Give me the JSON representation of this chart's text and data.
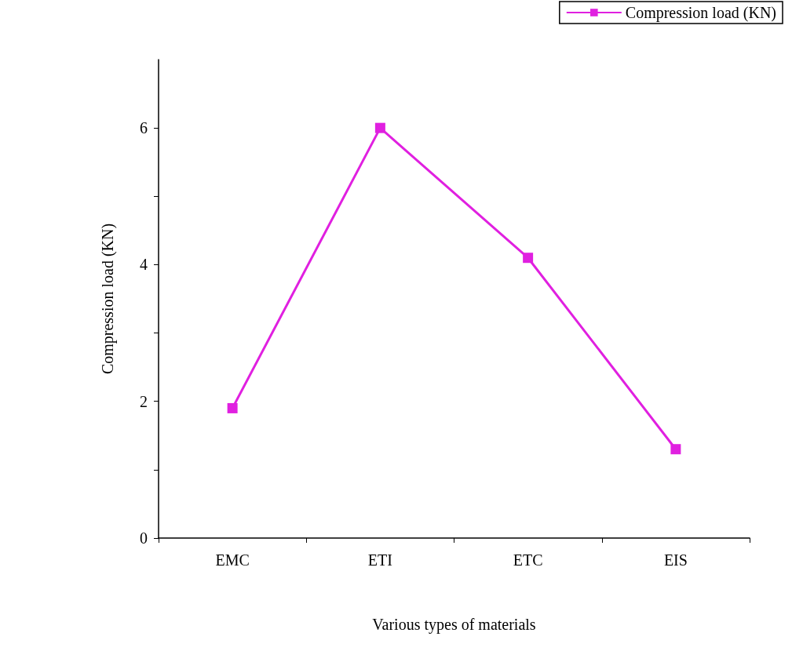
{
  "chart_data": {
    "type": "line",
    "xlabel": "Various types of materials",
    "ylabel": "Compression load (KN)",
    "categories": [
      "EMC",
      "ETI",
      "ETC",
      "EIS"
    ],
    "series": [
      {
        "name": "Compression load (KN)",
        "color": "#e020e0",
        "values": [
          1.9,
          6.0,
          4.1,
          1.3
        ]
      }
    ],
    "ylim": [
      0,
      7
    ],
    "yticks": [
      0,
      {
        "value": 1,
        "label": null
      },
      2,
      {
        "value": 3,
        "label": null
      },
      4,
      {
        "value": 5,
        "label": null
      },
      6
    ],
    "grid": false,
    "legend": "top right",
    "marker": "square",
    "line_style": "solid"
  }
}
